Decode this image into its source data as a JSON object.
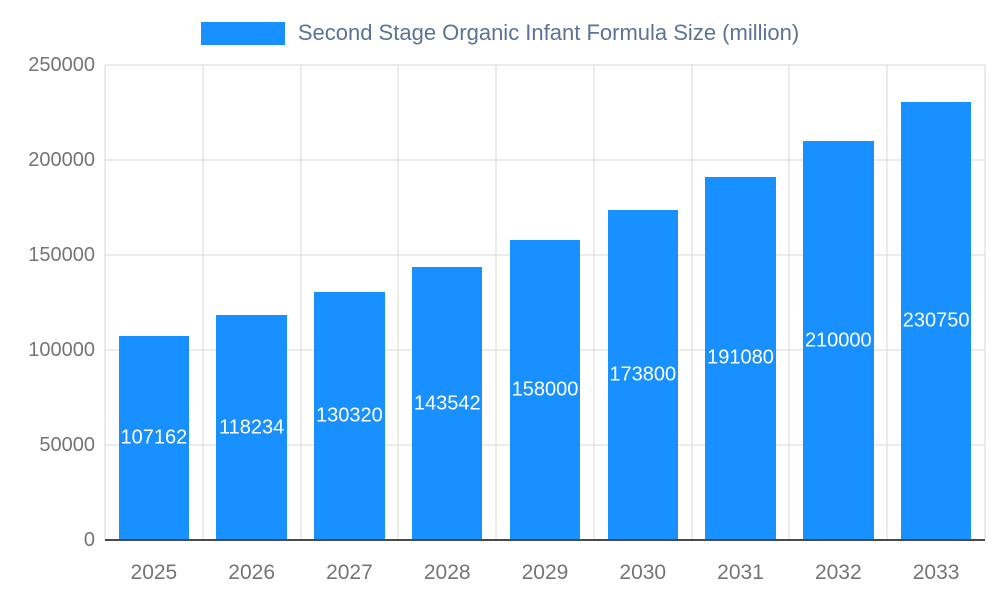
{
  "chart_data": {
    "type": "bar",
    "title": "Second Stage Organic Infant Formula Size (million)",
    "categories": [
      "2025",
      "2026",
      "2027",
      "2028",
      "2029",
      "2030",
      "2031",
      "2032",
      "2033"
    ],
    "values": [
      107162,
      118234,
      130320,
      143542,
      158000,
      173800,
      191080,
      210000,
      230750
    ],
    "value_labels": [
      "107162",
      "118234",
      "130320",
      "143542",
      "158000",
      "173800",
      "191080",
      "210000",
      "230750"
    ],
    "xlabel": "",
    "ylabel": "",
    "ylim": [
      0,
      250000
    ],
    "yticks": [
      0,
      50000,
      100000,
      150000,
      200000,
      250000
    ],
    "grid": true,
    "legend_position": "top",
    "colors": {
      "bar": "#1890ff",
      "value_label": "#ffffff",
      "title": "#5a7396",
      "tick_label": "#757575",
      "gridline": "#d9d9d9",
      "baseline": "#4a4a4a"
    }
  }
}
